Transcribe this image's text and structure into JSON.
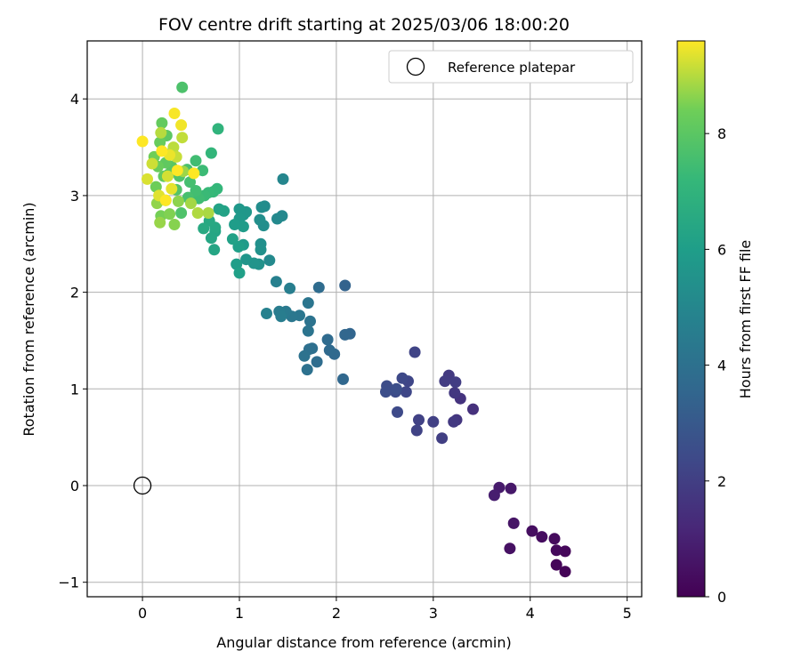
{
  "chart_data": {
    "type": "scatter",
    "title": "FOV centre drift starting at 2025/03/06 18:00:20",
    "xlabel": "Angular distance from reference (arcmin)",
    "ylabel": "Rotation from reference (arcmin)",
    "xlim": [
      -0.57,
      5.15
    ],
    "ylim": [
      -1.15,
      4.6
    ],
    "xticks": [
      0,
      1,
      2,
      3,
      4,
      5
    ],
    "yticks": [
      -1,
      0,
      1,
      2,
      3,
      4
    ],
    "grid": true,
    "legend": {
      "placement": "top-right",
      "entries": [
        "Reference platepar"
      ]
    },
    "reference_point": {
      "x": 0,
      "y": 0,
      "label": "Reference platepar"
    },
    "colorbar": {
      "label": "Hours from first FF file",
      "colormap": "viridis",
      "range": [
        0,
        9.6
      ],
      "ticks": [
        0,
        2,
        4,
        6,
        8
      ]
    },
    "points": [
      [
        4.36,
        -0.89,
        0.1
      ],
      [
        4.27,
        -0.82,
        0.15
      ],
      [
        4.36,
        -0.68,
        0.2
      ],
      [
        4.27,
        -0.67,
        0.25
      ],
      [
        4.25,
        -0.55,
        0.3
      ],
      [
        4.12,
        -0.53,
        0.35
      ],
      [
        4.02,
        -0.47,
        0.4
      ],
      [
        3.79,
        -0.65,
        0.5
      ],
      [
        3.83,
        -0.39,
        0.6
      ],
      [
        3.8,
        -0.03,
        0.7
      ],
      [
        3.68,
        -0.02,
        0.8
      ],
      [
        3.63,
        -0.1,
        0.9
      ],
      [
        3.41,
        0.79,
        1.5
      ],
      [
        3.28,
        0.9,
        1.6
      ],
      [
        3.24,
        0.68,
        1.7
      ],
      [
        3.22,
        0.96,
        1.75
      ],
      [
        3.21,
        0.66,
        1.8
      ],
      [
        3.16,
        1.14,
        1.85
      ],
      [
        3.12,
        1.08,
        1.9
      ],
      [
        3.23,
        1.07,
        1.95
      ],
      [
        3.09,
        0.49,
        2.0
      ],
      [
        3.0,
        0.66,
        2.05
      ],
      [
        2.85,
        0.68,
        2.1
      ],
      [
        2.83,
        0.57,
        2.15
      ],
      [
        2.81,
        1.38,
        2.2
      ],
      [
        2.74,
        1.08,
        2.25
      ],
      [
        2.72,
        0.97,
        2.3
      ],
      [
        2.68,
        1.11,
        2.35
      ],
      [
        2.63,
        0.76,
        2.4
      ],
      [
        2.61,
        0.97,
        2.45
      ],
      [
        2.52,
        1.03,
        2.5
      ],
      [
        2.51,
        0.97,
        2.55
      ],
      [
        2.62,
        1.0,
        2.6
      ],
      [
        2.09,
        2.07,
        3.4
      ],
      [
        2.14,
        1.57,
        3.5
      ],
      [
        2.09,
        1.56,
        3.55
      ],
      [
        2.07,
        1.1,
        3.6
      ],
      [
        1.98,
        1.36,
        3.65
      ],
      [
        1.93,
        1.4,
        3.7
      ],
      [
        1.91,
        1.51,
        3.75
      ],
      [
        1.82,
        2.05,
        3.8
      ],
      [
        1.8,
        1.28,
        3.85
      ],
      [
        1.75,
        1.42,
        3.9
      ],
      [
        1.72,
        1.41,
        3.95
      ],
      [
        1.7,
        1.2,
        4.0
      ],
      [
        1.67,
        1.34,
        4.05
      ],
      [
        1.73,
        1.7,
        4.1
      ],
      [
        1.71,
        1.6,
        4.15
      ],
      [
        1.71,
        1.89,
        4.2
      ],
      [
        1.62,
        1.76,
        4.25
      ],
      [
        1.54,
        1.75,
        4.3
      ],
      [
        1.48,
        1.8,
        4.4
      ],
      [
        1.45,
        1.78,
        4.45
      ],
      [
        1.41,
        1.8,
        4.5
      ],
      [
        1.43,
        1.75,
        4.55
      ],
      [
        1.52,
        2.04,
        4.6
      ],
      [
        1.38,
        2.11,
        4.7
      ],
      [
        1.28,
        1.78,
        4.75
      ],
      [
        1.45,
        3.17,
        4.95
      ],
      [
        1.44,
        2.79,
        5.05
      ],
      [
        1.39,
        2.76,
        5.1
      ],
      [
        1.31,
        2.33,
        5.15
      ],
      [
        1.26,
        2.89,
        5.2
      ],
      [
        1.23,
        2.88,
        5.25
      ],
      [
        1.25,
        2.69,
        5.3
      ],
      [
        1.21,
        2.75,
        5.35
      ],
      [
        1.22,
        2.5,
        5.4
      ],
      [
        1.22,
        2.44,
        5.45
      ],
      [
        1.2,
        2.29,
        5.5
      ],
      [
        1.15,
        2.3,
        5.55
      ],
      [
        1.07,
        2.34,
        5.6
      ],
      [
        1.04,
        2.8,
        5.65
      ],
      [
        1.07,
        2.83,
        5.7
      ],
      [
        1.0,
        2.86,
        5.75
      ],
      [
        1.0,
        2.76,
        5.8
      ],
      [
        1.04,
        2.49,
        5.85
      ],
      [
        1.04,
        2.68,
        5.9
      ],
      [
        0.95,
        2.7,
        5.95
      ],
      [
        0.97,
        2.29,
        6.0
      ],
      [
        0.99,
        2.47,
        6.05
      ],
      [
        1.0,
        2.2,
        6.1
      ],
      [
        0.93,
        2.55,
        6.15
      ],
      [
        0.84,
        2.84,
        6.2
      ],
      [
        0.79,
        2.86,
        6.25
      ],
      [
        0.75,
        2.63,
        6.3
      ],
      [
        0.74,
        2.44,
        6.35
      ],
      [
        0.71,
        2.56,
        6.4
      ],
      [
        0.75,
        2.67,
        6.45
      ],
      [
        0.69,
        2.74,
        6.5
      ],
      [
        0.63,
        2.66,
        6.55
      ],
      [
        0.78,
        3.69,
        7.0
      ],
      [
        0.71,
        3.44,
        7.1
      ],
      [
        0.77,
        3.07,
        7.15
      ],
      [
        0.73,
        3.04,
        7.2
      ],
      [
        0.68,
        3.03,
        7.25
      ],
      [
        0.64,
        3.0,
        7.3
      ],
      [
        0.62,
        3.26,
        7.35
      ],
      [
        0.58,
        2.97,
        7.4
      ],
      [
        0.55,
        3.36,
        7.45
      ],
      [
        0.55,
        3.05,
        7.5
      ],
      [
        0.49,
        3.14,
        7.55
      ],
      [
        0.47,
        2.98,
        7.6
      ],
      [
        0.46,
        3.27,
        7.65
      ],
      [
        0.41,
        4.12,
        7.7
      ],
      [
        0.4,
        2.82,
        7.75
      ],
      [
        0.38,
        3.2,
        7.8
      ],
      [
        0.35,
        3.06,
        7.85
      ],
      [
        0.31,
        3.45,
        7.9
      ],
      [
        0.3,
        3.3,
        7.95
      ],
      [
        0.27,
        3.22,
        8.0
      ],
      [
        0.25,
        3.62,
        8.05
      ],
      [
        0.24,
        3.34,
        8.1
      ],
      [
        0.22,
        3.2,
        8.15
      ],
      [
        0.2,
        3.75,
        8.2
      ],
      [
        0.18,
        3.55,
        8.25
      ],
      [
        0.16,
        3.3,
        8.3
      ],
      [
        0.14,
        3.09,
        8.35
      ],
      [
        0.12,
        3.4,
        8.4
      ],
      [
        0.19,
        2.79,
        8.45
      ],
      [
        0.24,
        2.95,
        8.5
      ],
      [
        0.28,
        2.81,
        8.55
      ],
      [
        0.33,
        2.7,
        8.6
      ],
      [
        0.37,
        2.94,
        8.65
      ],
      [
        0.15,
        2.92,
        8.7
      ],
      [
        0.18,
        2.72,
        8.75
      ],
      [
        0.42,
        3.25,
        8.8
      ],
      [
        0.5,
        2.92,
        8.85
      ],
      [
        0.68,
        2.82,
        8.9
      ],
      [
        0.57,
        2.82,
        8.95
      ],
      [
        0.19,
        3.65,
        9.0
      ],
      [
        0.32,
        3.5,
        9.05
      ],
      [
        0.41,
        3.6,
        9.1
      ],
      [
        0.35,
        3.4,
        9.15
      ],
      [
        0.1,
        3.33,
        9.2
      ],
      [
        0.26,
        3.2,
        9.25
      ],
      [
        0.05,
        3.17,
        9.3
      ],
      [
        0.17,
        3.0,
        9.35
      ],
      [
        0.3,
        3.07,
        9.4
      ],
      [
        0.28,
        3.42,
        9.45
      ],
      [
        0.4,
        3.73,
        9.5
      ],
      [
        0.33,
        3.85,
        9.55
      ],
      [
        0.0,
        3.56,
        9.6
      ],
      [
        0.2,
        3.46,
        9.6
      ],
      [
        0.36,
        3.26,
        9.6
      ],
      [
        0.53,
        3.23,
        9.6
      ],
      [
        0.24,
        2.95,
        9.6
      ]
    ]
  }
}
